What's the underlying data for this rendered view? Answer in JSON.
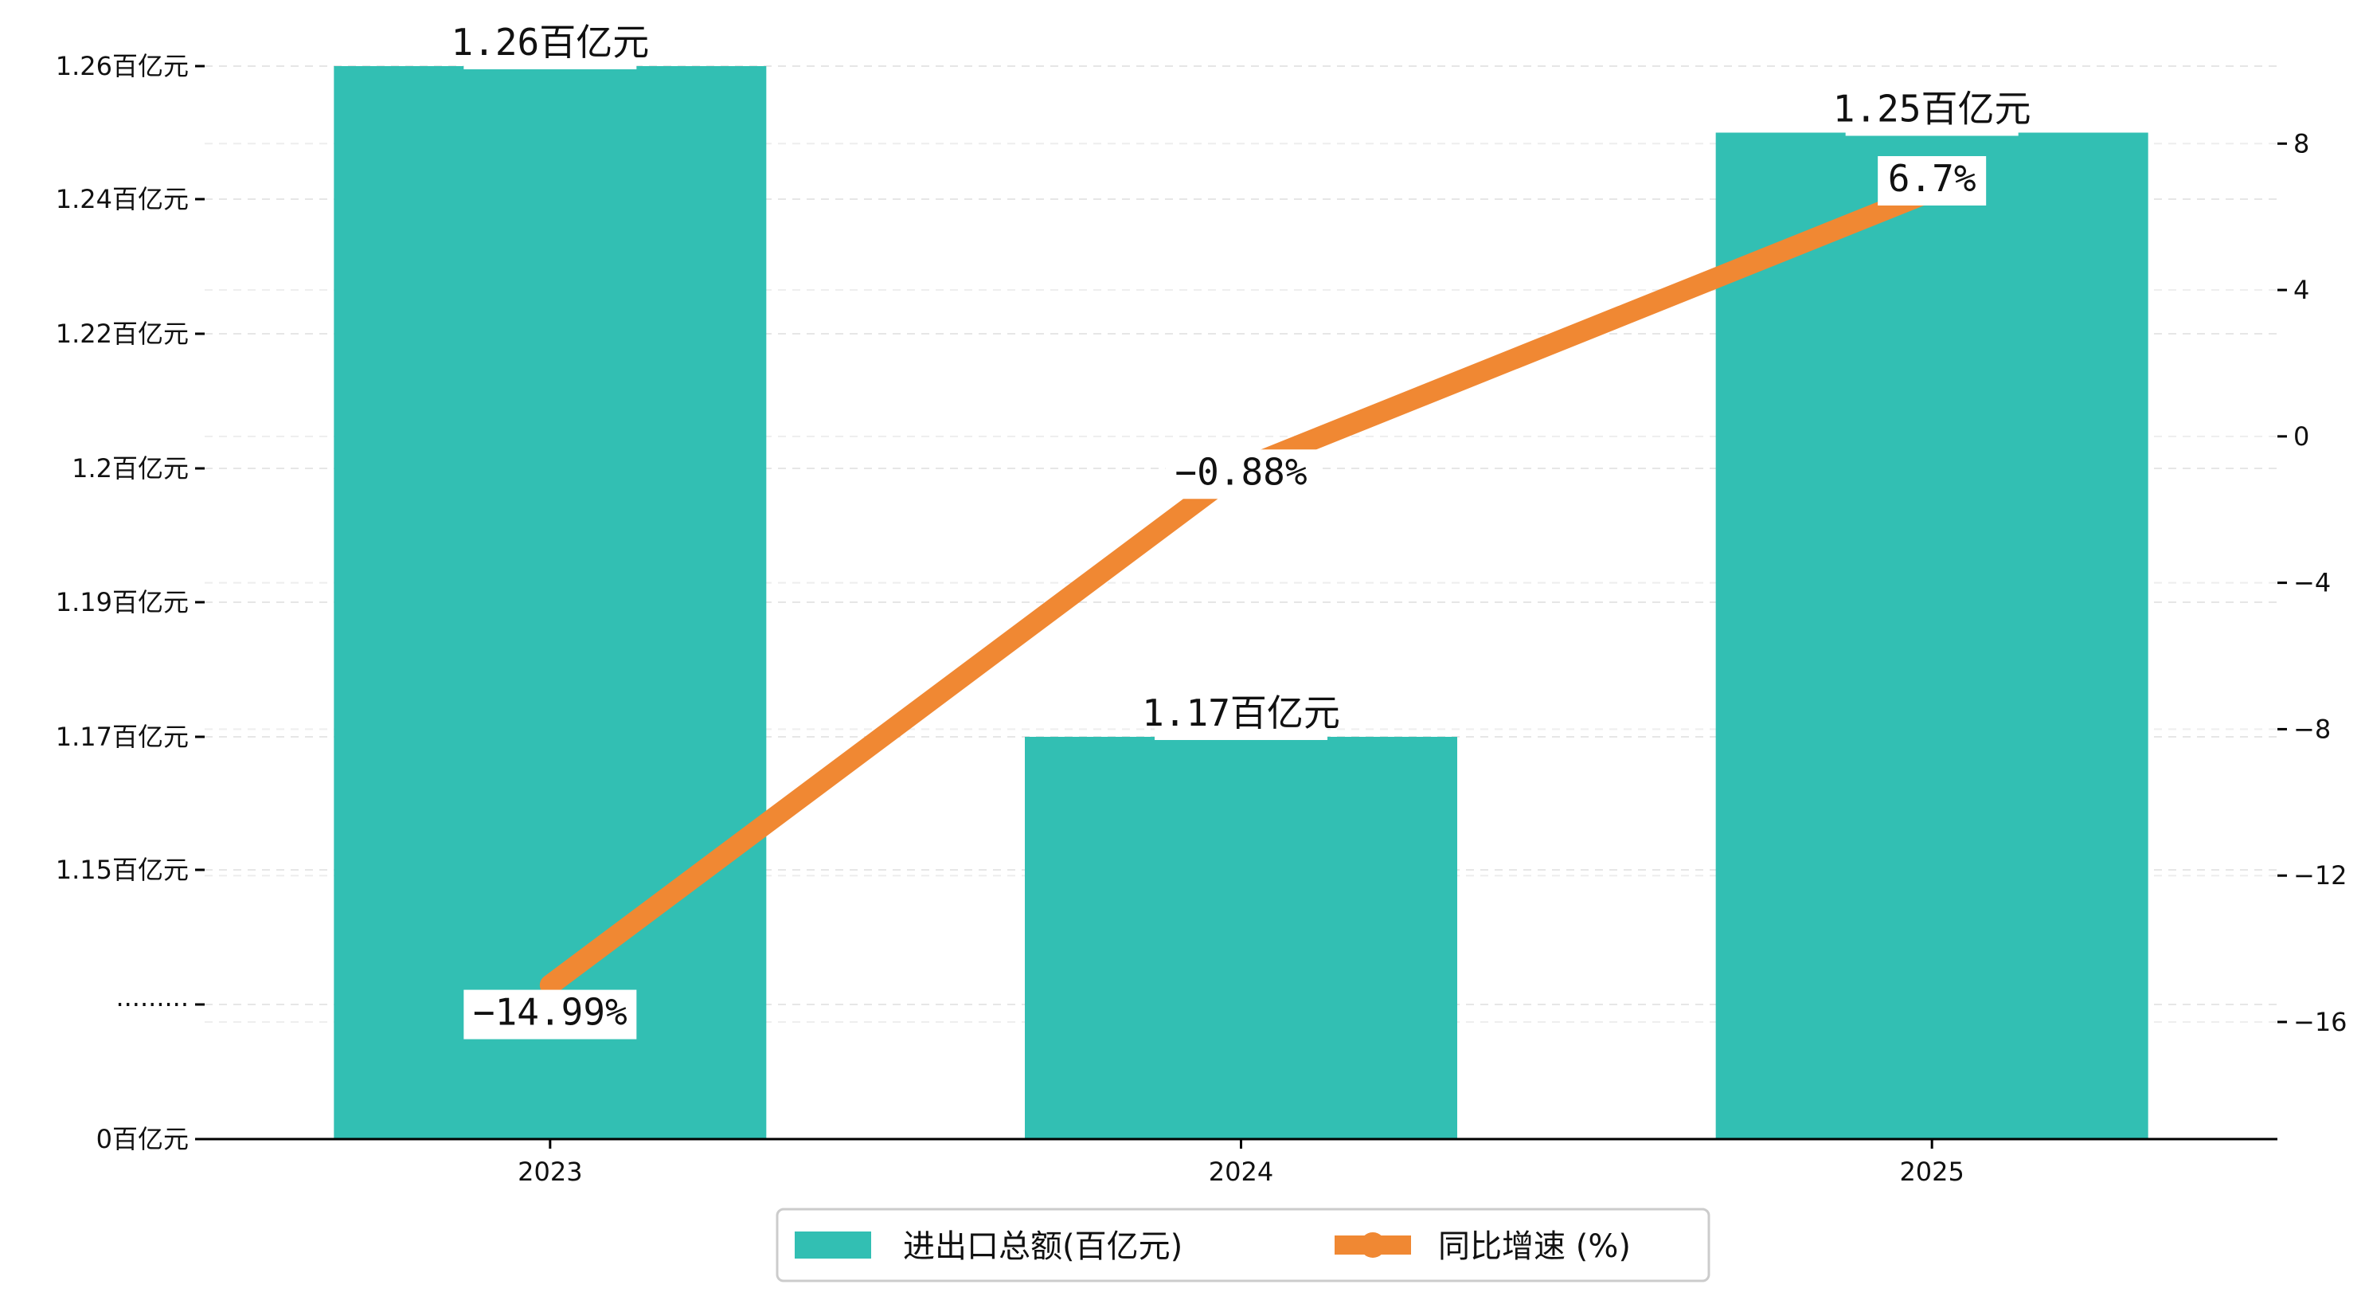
{
  "chart_data": {
    "type": "bar",
    "categories": [
      "2023",
      "2024",
      "2025"
    ],
    "series": [
      {
        "name": "进出口总额(百亿元)",
        "type": "bar",
        "axis": "left",
        "values": [
          1.26,
          1.17,
          1.25
        ],
        "labels": [
          "1.26百亿元",
          "1.17百亿元",
          "1.25百亿元"
        ],
        "color": "#32bfb3"
      },
      {
        "name": "同比增速 (%)",
        "type": "line",
        "axis": "right",
        "values": [
          -14.99,
          -0.88,
          6.7
        ],
        "labels": [
          "-14.99%",
          "-0.88%",
          "6.7%"
        ],
        "color": "#f08833"
      }
    ],
    "left_axis": {
      "tick_labels": [
        "0百亿元",
        "·········",
        "1.15百亿元",
        "1.17百亿元",
        "1.19百亿元",
        "1.2百亿元",
        "1.22百亿元",
        "1.24百亿元",
        "1.26百亿元"
      ],
      "tick_values": [
        0,
        null,
        1.15,
        1.17,
        1.19,
        1.2,
        1.22,
        1.24,
        1.26
      ],
      "axis_break": true
    },
    "right_axis": {
      "ylim": [
        -19.2,
        10.4
      ],
      "tick_values": [
        -16,
        -12,
        -8,
        -4,
        0,
        4,
        8
      ]
    },
    "grid": true,
    "legend": "bottom-center"
  }
}
